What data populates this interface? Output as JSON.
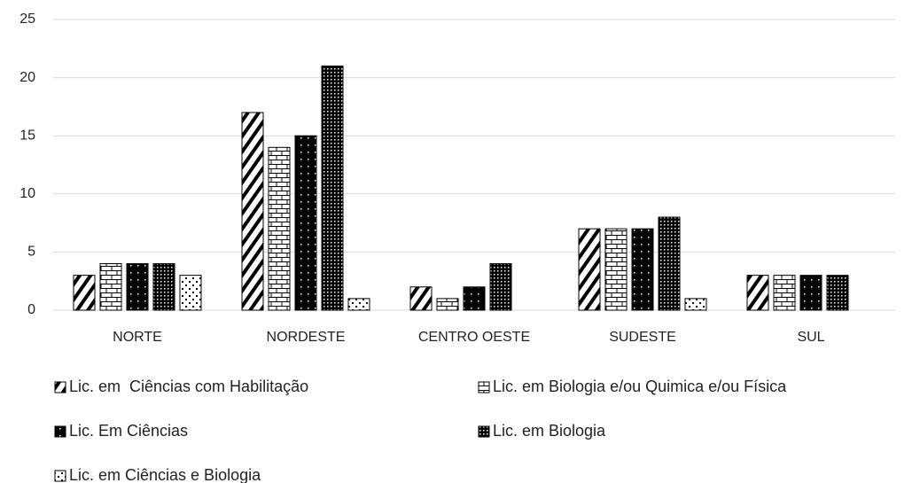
{
  "chart_data": {
    "type": "bar",
    "categories": [
      "NORTE",
      "NORDESTE",
      "CENTRO OESTE",
      "SUDESTE",
      "SUL"
    ],
    "series": [
      {
        "name": "Lic. em  Ciências com Habilitação",
        "color": "#000000",
        "values": [
          3,
          17,
          2,
          7,
          3
        ]
      },
      {
        "name": "Lic. em Biologia e/ou Quimica e/ou Física",
        "color": "#000000",
        "values": [
          4,
          14,
          1,
          7,
          3
        ]
      },
      {
        "name": "Lic. Em Ciências",
        "color": "#000000",
        "values": [
          4,
          15,
          2,
          7,
          3
        ]
      },
      {
        "name": "Lic. em Biologia",
        "color": "#000000",
        "values": [
          4,
          21,
          4,
          8,
          3
        ]
      },
      {
        "name": "Lic. em Ciências e Biologia",
        "color": "#000000",
        "values": [
          3,
          1,
          0,
          1,
          0
        ]
      }
    ],
    "ylim": [
      0,
      25
    ],
    "yticks": [
      0,
      5,
      10,
      15,
      20,
      25
    ],
    "grid": true,
    "legend": "bottom"
  }
}
